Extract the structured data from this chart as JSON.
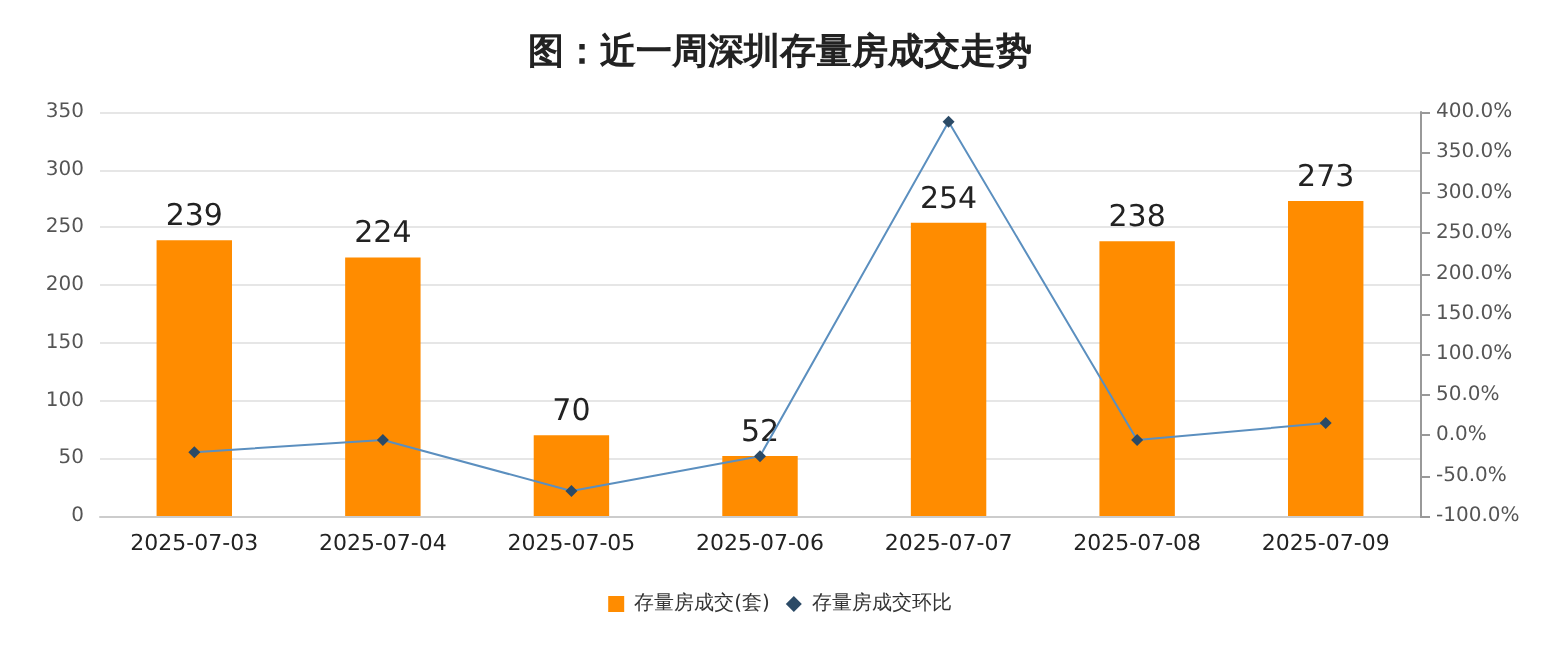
{
  "chart_data": {
    "type": "bar",
    "title": "图：近一周深圳存量房成交走势",
    "categories": [
      "2025-07-03",
      "2025-07-04",
      "2025-07-05",
      "2025-07-06",
      "2025-07-07",
      "2025-07-08",
      "2025-07-09"
    ],
    "series": [
      {
        "name": "存量房成交(套)",
        "color": "#ff8c00",
        "values": [
          239,
          224,
          70,
          52,
          254,
          238,
          273
        ],
        "value_labels": [
          "239",
          "224",
          "70",
          "52",
          "254",
          "238",
          "273"
        ]
      },
      {
        "name": "存量房成交环比",
        "type": "line",
        "axis": "y2",
        "color": "#5b8fbf",
        "marker": "diamond",
        "values": [
          -21,
          -6,
          -69,
          -26,
          388,
          -6,
          15
        ]
      }
    ],
    "ylim": [
      0,
      350
    ],
    "yticks": [
      0,
      50,
      100,
      150,
      200,
      250,
      300,
      350
    ],
    "y2lim": [
      -100,
      400
    ],
    "y2ticks": [
      {
        "value": -100,
        "label": "-100.0%"
      },
      {
        "value": -50,
        "label": "-50.0%"
      },
      {
        "value": 0,
        "label": "0.0%"
      },
      {
        "value": 50,
        "label": "50.0%"
      },
      {
        "value": 100,
        "label": "100.0%"
      },
      {
        "value": 150,
        "label": "150.0%"
      },
      {
        "value": 200,
        "label": "200.0%"
      },
      {
        "value": 250,
        "label": "250.0%"
      },
      {
        "value": 300,
        "label": "300.0%"
      },
      {
        "value": 350,
        "label": "350.0%"
      },
      {
        "value": 400,
        "label": "400.0%"
      }
    ],
    "grid": "y",
    "legend": "bottom"
  }
}
